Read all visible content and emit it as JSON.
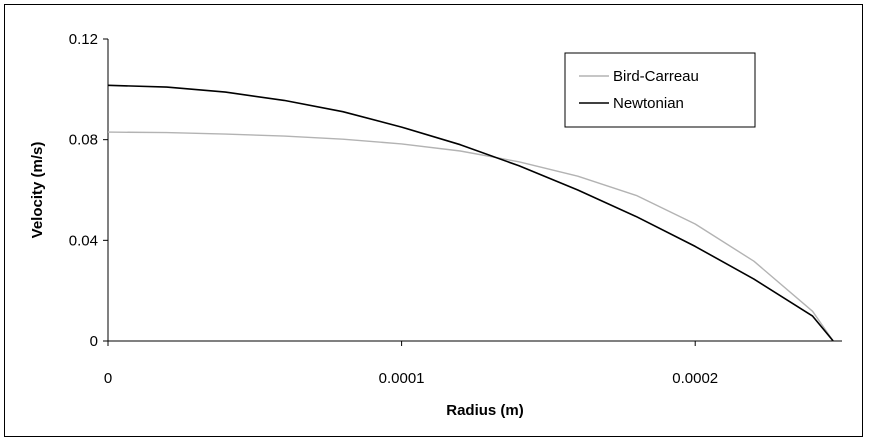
{
  "chart_data": {
    "type": "line",
    "title": "",
    "xlabel": "Radius (m)",
    "ylabel": "Velocity (m/s)",
    "xlim": [
      0,
      0.00025
    ],
    "ylim": [
      0,
      0.12
    ],
    "grid": false,
    "legend_position": "top-right",
    "x_ticks": [
      {
        "value": 0,
        "label": "0"
      },
      {
        "value": 0.0001,
        "label": "0.0001"
      },
      {
        "value": 0.0002,
        "label": "0.0002"
      }
    ],
    "y_ticks": [
      {
        "value": 0,
        "label": "0"
      },
      {
        "value": 0.04,
        "label": "0.04"
      },
      {
        "value": 0.08,
        "label": "0.08"
      },
      {
        "value": 0.12,
        "label": "0.12"
      }
    ],
    "series": [
      {
        "name": "Bird-Carreau",
        "color": "#b3b3b3",
        "x": [
          0,
          2e-05,
          4e-05,
          6e-05,
          8e-05,
          0.0001,
          0.00012,
          0.00014,
          0.00016,
          0.00018,
          0.0002,
          0.00022,
          0.00024,
          0.000247
        ],
        "y": [
          0.083,
          0.0828,
          0.0822,
          0.0814,
          0.0802,
          0.0783,
          0.0755,
          0.0712,
          0.0655,
          0.0578,
          0.0465,
          0.0317,
          0.0118,
          0.0
        ]
      },
      {
        "name": "Newtonian",
        "color": "#000000",
        "x": [
          0,
          2e-05,
          4e-05,
          6e-05,
          8e-05,
          0.0001,
          0.00012,
          0.00014,
          0.00016,
          0.00018,
          0.0002,
          0.00022,
          0.00024,
          0.000247
        ],
        "y": [
          0.1016,
          0.1009,
          0.0989,
          0.0956,
          0.0911,
          0.085,
          0.078,
          0.0696,
          0.06,
          0.0494,
          0.0376,
          0.0246,
          0.0099,
          0.0
        ]
      }
    ]
  }
}
